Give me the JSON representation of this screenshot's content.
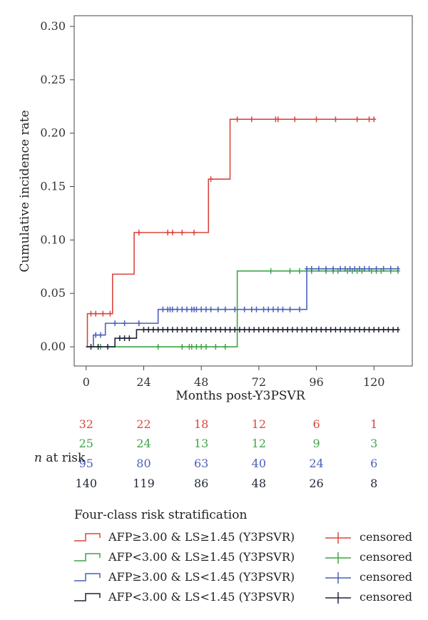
{
  "chart_data": {
    "type": "line",
    "step": true,
    "xlabel": "Months post-Y3PSVR",
    "ylabel": "Cumulative incidence rate",
    "xlim": [
      -5,
      136
    ],
    "ylim": [
      -0.018,
      0.31
    ],
    "x_ticks": [
      0,
      24,
      48,
      72,
      96,
      120
    ],
    "y_ticks": [
      0.0,
      0.05,
      0.1,
      0.15,
      0.2,
      0.25,
      0.3
    ],
    "y_tick_labels": [
      "0.00",
      "0.05",
      "0.10",
      "0.15",
      "0.20",
      "0.25",
      "0.30"
    ],
    "legend_title": "Four-class risk stratification",
    "censored_label": "censored",
    "series": [
      {
        "name": "AFP≥3.00 & LS≥1.45 (Y3PSVR)",
        "color": "#d9473f",
        "steps": [
          [
            0,
            0
          ],
          [
            0.5,
            0.031
          ],
          [
            11,
            0.068
          ],
          [
            20,
            0.107
          ],
          [
            51,
            0.157
          ],
          [
            60,
            0.213
          ],
          [
            120,
            0.213
          ]
        ],
        "censored": [
          2,
          4,
          7,
          10,
          22,
          34,
          36,
          40,
          45,
          52,
          63,
          69,
          79,
          80,
          87,
          96,
          104,
          113,
          118,
          120
        ]
      },
      {
        "name": "AFP<3.00 & LS≥1.45 (Y3PSVR)",
        "color": "#3fa447",
        "steps": [
          [
            0,
            0
          ],
          [
            63,
            0.071
          ],
          [
            130,
            0.071
          ]
        ],
        "censored": [
          6,
          30,
          40,
          43,
          44,
          46,
          48,
          50,
          54,
          58,
          77,
          85,
          89,
          94,
          100,
          103,
          105,
          109,
          111,
          113,
          115,
          119,
          121,
          123,
          127,
          130
        ]
      },
      {
        "name": "AFP≥3.00 & LS<1.45 (Y3PSVR)",
        "color": "#4a5fba",
        "steps": [
          [
            0,
            0
          ],
          [
            3,
            0.011
          ],
          [
            8,
            0.022
          ],
          [
            30,
            0.035
          ],
          [
            92,
            0.073
          ],
          [
            130,
            0.073
          ]
        ],
        "censored": [
          4,
          6,
          12,
          16,
          22,
          32,
          34,
          35,
          36,
          38,
          40,
          42,
          44,
          45,
          46,
          48,
          50,
          52,
          55,
          58,
          62,
          66,
          69,
          71,
          74,
          76,
          78,
          80,
          82,
          85,
          89,
          92,
          94,
          97,
          100,
          103,
          106,
          108,
          110,
          112,
          114,
          116,
          118,
          121,
          124,
          127,
          130
        ]
      },
      {
        "name": "AFP<3.00 & LS<1.45 (Y3PSVR)",
        "color": "#1f2536",
        "steps": [
          [
            0,
            0
          ],
          [
            12,
            0.008
          ],
          [
            21,
            0.016
          ],
          [
            130,
            0.016
          ]
        ],
        "censored": [
          2,
          5,
          9,
          14,
          16,
          18,
          24,
          26,
          28,
          30,
          32,
          34,
          36,
          38,
          40,
          42,
          44,
          46,
          48,
          50,
          52,
          54,
          56,
          58,
          60,
          62,
          64,
          66,
          68,
          70,
          72,
          74,
          76,
          78,
          80,
          82,
          84,
          86,
          88,
          90,
          92,
          94,
          96,
          98,
          100,
          102,
          104,
          106,
          108,
          110,
          112,
          114,
          116,
          118,
          120,
          122,
          124,
          126,
          128,
          130
        ]
      }
    ]
  },
  "risk_table": {
    "label_n": "n",
    "label_rest": " at risk",
    "rows": [
      {
        "color": "#d9473f",
        "values": [
          "32",
          "22",
          "18",
          "12",
          "6",
          "1"
        ]
      },
      {
        "color": "#3fa447",
        "values": [
          "25",
          "24",
          "13",
          "12",
          "9",
          "3"
        ]
      },
      {
        "color": "#4a5fba",
        "values": [
          "95",
          "80",
          "63",
          "40",
          "24",
          "6"
        ]
      },
      {
        "color": "#1f2536",
        "values": [
          "140",
          "119",
          "86",
          "48",
          "26",
          "8"
        ]
      }
    ]
  }
}
